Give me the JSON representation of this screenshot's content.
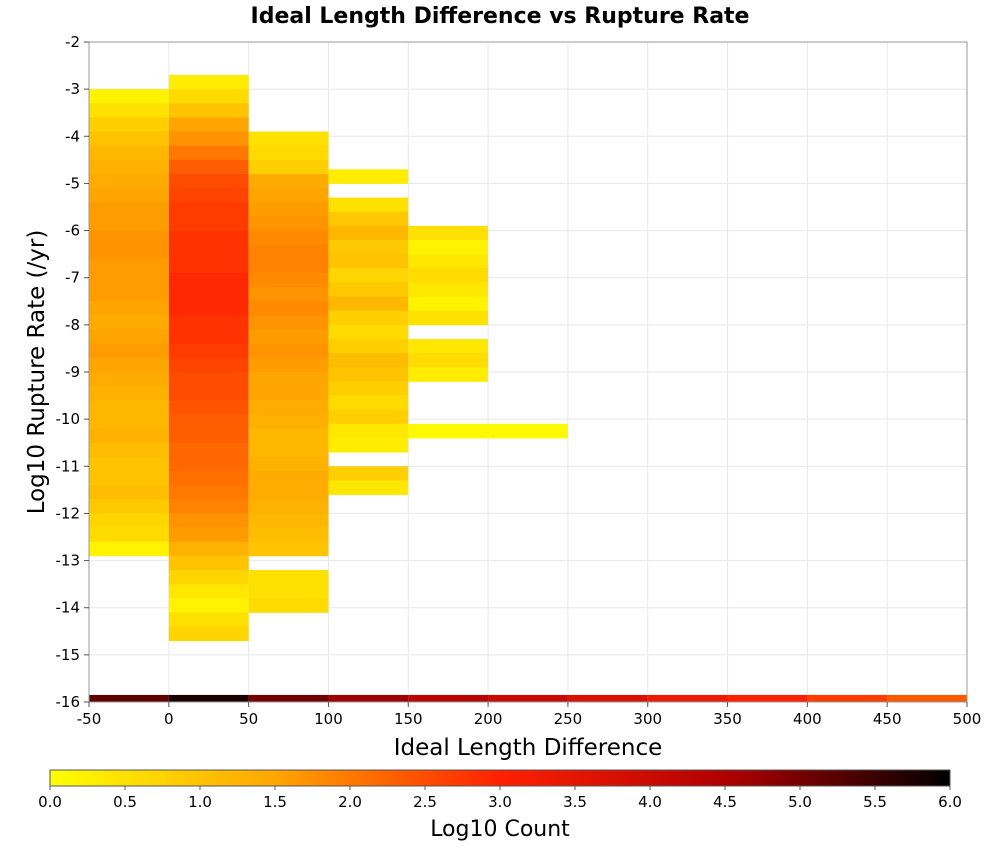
{
  "chart_data": {
    "type": "heatmap",
    "title": "Ideal Length Difference vs Rupture Rate",
    "xlabel": "Ideal Length Difference",
    "ylabel": "Log10 Rupture Rate (/yr)",
    "xlim": [
      -50,
      500
    ],
    "ylim": [
      -16,
      -2
    ],
    "x_ticks": [
      "-50",
      "0",
      "50",
      "100",
      "150",
      "200",
      "250",
      "300",
      "350",
      "400",
      "450",
      "500"
    ],
    "y_ticks": [
      "-2",
      "-3",
      "-4",
      "-5",
      "-6",
      "-7",
      "-8",
      "-9",
      "-10",
      "-11",
      "-12",
      "-13",
      "-14",
      "-15",
      "-16"
    ],
    "x_bin_width": 50,
    "y_bin_height": 0.3,
    "grid": true,
    "colorscale": {
      "title": "Log10 Count",
      "range": [
        0,
        6
      ],
      "ticks": [
        "0.0",
        "0.5",
        "1.0",
        "1.5",
        "2.0",
        "2.5",
        "3.0",
        "3.5",
        "4.0",
        "4.5",
        "5.0",
        "5.5",
        "6.0"
      ],
      "colors": [
        "#ffff00",
        "#ffa500",
        "#ff2000",
        "#b00000",
        "#000000"
      ]
    },
    "columns": [
      {
        "x_start": -50,
        "x_end": 0,
        "y_top": -3.0,
        "values": [
          0.2,
          0.5,
          0.8,
          1.0,
          1.2,
          1.3,
          1.4,
          1.5,
          1.6,
          1.6,
          1.7,
          1.7,
          1.6,
          1.6,
          1.6,
          1.5,
          1.4,
          1.5,
          1.6,
          1.5,
          1.4,
          1.3,
          1.2,
          1.2,
          1.3,
          1.1,
          1.0,
          1.0,
          1.1,
          0.9,
          0.7,
          0.6,
          0.2
        ]
      },
      {
        "x_start": 0,
        "x_end": 50,
        "y_top": -2.7,
        "values": [
          0.3,
          0.6,
          1.0,
          1.5,
          1.7,
          2.0,
          2.3,
          2.5,
          2.6,
          2.7,
          2.7,
          2.8,
          2.8,
          2.8,
          2.9,
          2.9,
          2.9,
          2.8,
          2.8,
          2.7,
          2.6,
          2.5,
          2.5,
          2.4,
          2.3,
          2.3,
          2.2,
          2.2,
          2.1,
          2.0,
          1.9,
          1.7,
          1.6,
          1.3,
          1.0,
          0.7,
          0.4,
          0.2,
          0.5,
          0.7
        ]
      },
      {
        "x_start": 50,
        "x_end": 100,
        "y_top": -3.9,
        "values": [
          0.5,
          0.6,
          0.8,
          1.4,
          1.5,
          1.6,
          1.7,
          1.8,
          1.9,
          1.9,
          1.8,
          1.7,
          1.8,
          1.7,
          1.6,
          1.7,
          1.6,
          1.5,
          1.5,
          1.4,
          1.3,
          1.2,
          1.2,
          1.3,
          1.4,
          1.4,
          1.3,
          1.2,
          1.1,
          1.0,
          null,
          0.5,
          0.5,
          0.6
        ]
      },
      {
        "x_start": 100,
        "x_end": 150,
        "y_top": -4.7,
        "values": [
          0.3,
          null,
          0.5,
          0.9,
          1.2,
          0.9,
          1.0,
          0.7,
          0.9,
          1.2,
          0.8,
          0.6,
          0.8,
          1.1,
          1.0,
          0.8,
          0.6,
          0.8,
          0.4,
          0.3,
          null,
          0.8,
          0.4
        ]
      },
      {
        "x_start": 150,
        "x_end": 200,
        "y_top": -5.9,
        "values": [
          0.5,
          0.2,
          0.4,
          0.6,
          0.4,
          0.2,
          0.5,
          null,
          0.4,
          0.6,
          0.3
        ]
      },
      {
        "x_start": 150,
        "x_end": 250,
        "y_top": -10.1,
        "values": [
          0.1
        ]
      }
    ]
  }
}
